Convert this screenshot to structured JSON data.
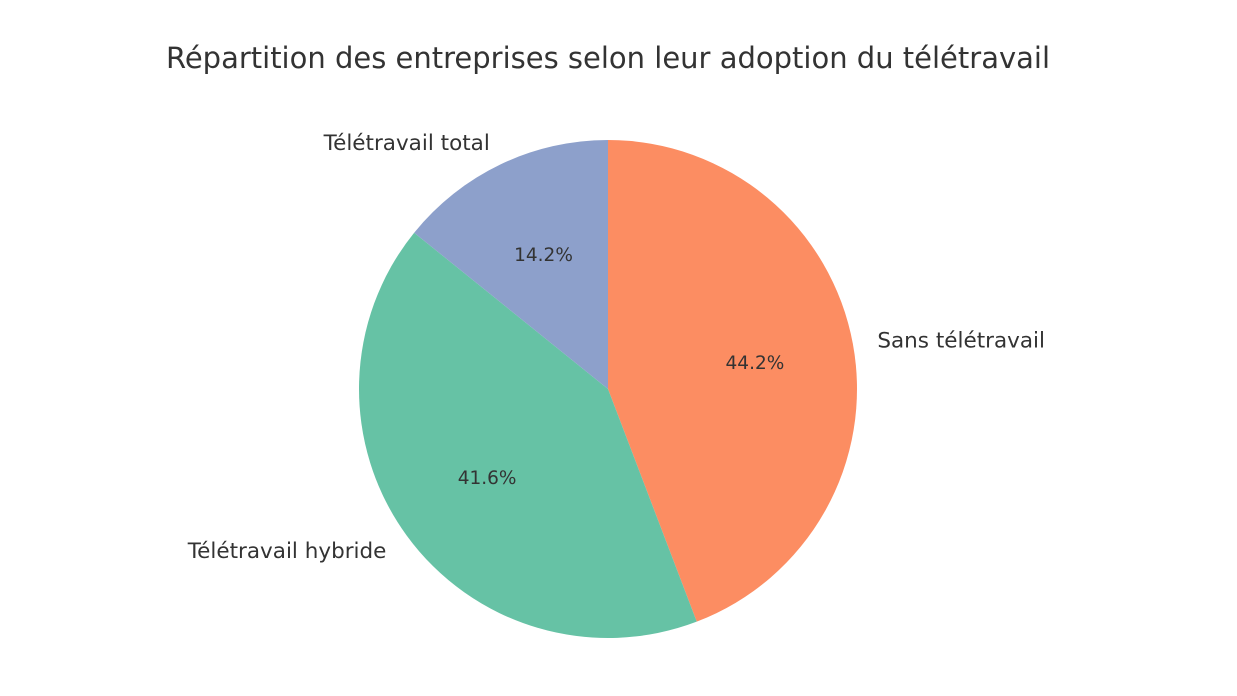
{
  "chart_data": {
    "type": "pie",
    "title": "Répartition des entreprises selon leur adoption du télétravail",
    "categories": [
      "Sans télétravail",
      "Télétravail hybride",
      "Télétravail total"
    ],
    "values": [
      44.2,
      41.6,
      14.2
    ],
    "value_labels": [
      "44.2%",
      "41.6%",
      "14.2%"
    ],
    "colors": [
      "#fc8d62",
      "#66c2a5",
      "#8da0cb"
    ],
    "start_angle": 90,
    "direction": "clockwise"
  }
}
